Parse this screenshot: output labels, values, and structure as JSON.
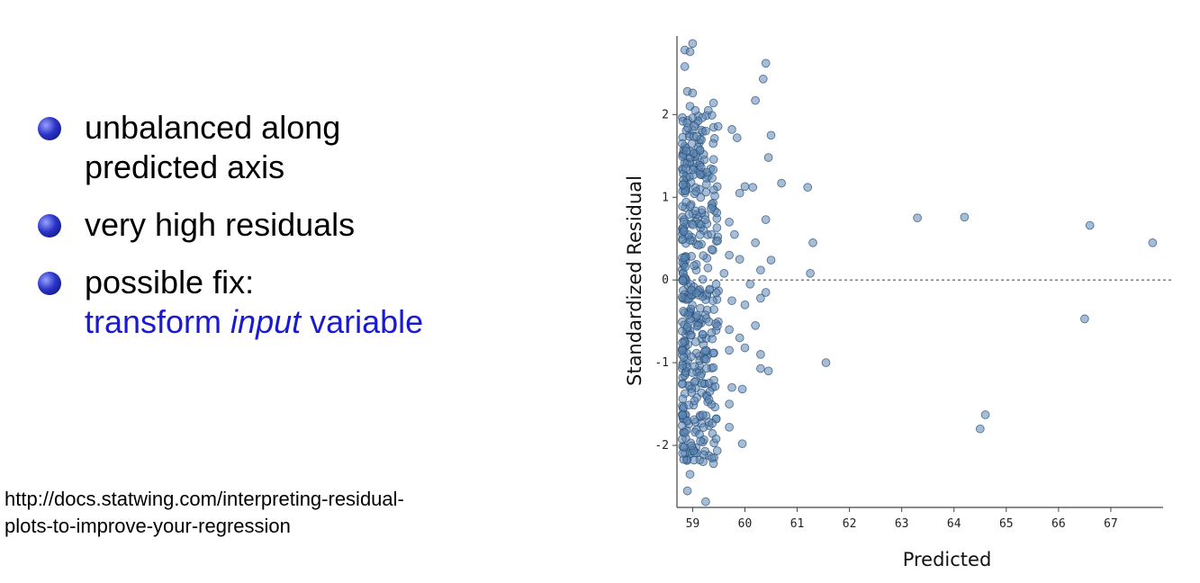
{
  "bullets": {
    "b1": {
      "line1": "unbalanced along",
      "line2": "predicted axis"
    },
    "b2": {
      "line1": "very high residuals"
    },
    "b3": {
      "line1": "possible fix:",
      "pre": "transform ",
      "em": "input",
      "post": " variable"
    }
  },
  "source": {
    "line1": "http://docs.statwing.com/interpreting-residual-",
    "line2": "plots-to-improve-your-regression"
  },
  "colors": {
    "bullet": "#2a34c8",
    "link_text": "#1a1ad6",
    "points": "#5b86b5"
  },
  "chart_data": {
    "type": "scatter",
    "xlabel": "Predicted",
    "ylabel": "Standardized Residual",
    "xlim": [
      58.7,
      68.0
    ],
    "ylim": [
      -2.75,
      2.95
    ],
    "xticks": [
      "59",
      "60",
      "61",
      "62",
      "63",
      "64",
      "65",
      "66",
      "67"
    ],
    "yticks": [
      "2",
      "1",
      "0",
      "-1",
      "-2"
    ],
    "reference_line": {
      "y": 0,
      "style": "dashed"
    },
    "series": [
      {
        "points": [
          [
            63.3,
            0.75
          ],
          [
            64.2,
            0.76
          ],
          [
            66.6,
            0.66
          ],
          [
            67.8,
            0.45
          ],
          [
            66.5,
            -0.47
          ],
          [
            64.6,
            -1.63
          ],
          [
            64.5,
            -1.8
          ],
          [
            61.55,
            -1.0
          ],
          [
            61.2,
            1.12
          ],
          [
            61.3,
            0.45
          ],
          [
            61.25,
            0.08
          ],
          [
            60.4,
            2.62
          ],
          [
            60.35,
            2.43
          ],
          [
            60.2,
            2.17
          ],
          [
            60.5,
            1.75
          ],
          [
            60.45,
            1.48
          ],
          [
            60.7,
            1.17
          ],
          [
            60.15,
            1.12
          ],
          [
            60.0,
            1.13
          ],
          [
            59.9,
            1.05
          ],
          [
            60.4,
            0.73
          ],
          [
            60.2,
            0.45
          ],
          [
            60.5,
            0.24
          ],
          [
            60.3,
            0.12
          ],
          [
            60.1,
            -0.05
          ],
          [
            60.4,
            -0.15
          ],
          [
            60.3,
            -0.22
          ],
          [
            60.0,
            -0.3
          ],
          [
            60.2,
            -0.55
          ],
          [
            59.9,
            -0.7
          ],
          [
            60.0,
            -0.82
          ],
          [
            60.3,
            -0.9
          ],
          [
            60.3,
            -1.07
          ],
          [
            60.45,
            -1.1
          ],
          [
            59.95,
            -1.32
          ],
          [
            59.95,
            -1.98
          ],
          [
            59.4,
            2.14
          ],
          [
            59.3,
            2.05
          ],
          [
            59.25,
            1.8
          ],
          [
            59.75,
            1.82
          ],
          [
            59.85,
            1.72
          ],
          [
            59.7,
            0.7
          ],
          [
            59.8,
            0.55
          ],
          [
            59.7,
            0.3
          ],
          [
            59.9,
            0.25
          ],
          [
            59.6,
            0.08
          ],
          [
            59.75,
            -0.25
          ],
          [
            59.7,
            -0.6
          ],
          [
            59.7,
            -0.85
          ],
          [
            59.75,
            -1.3
          ],
          [
            59.7,
            -1.5
          ],
          [
            59.7,
            -1.78
          ],
          [
            59.45,
            -1.92
          ],
          [
            59.4,
            -2.22
          ],
          [
            59.25,
            -2.68
          ],
          [
            58.9,
            -2.55
          ],
          [
            58.95,
            -2.35
          ],
          [
            58.85,
            2.78
          ],
          [
            58.95,
            2.76
          ],
          [
            59.0,
            2.86
          ],
          [
            58.85,
            2.58
          ],
          [
            58.9,
            2.28
          ],
          [
            59.0,
            2.26
          ],
          [
            58.95,
            2.1
          ],
          [
            59.05,
            2.05
          ]
        ],
        "dense_band": {
          "x_range": [
            58.8,
            59.5
          ],
          "y_range": [
            -2.2,
            2.0
          ],
          "count": 420,
          "note": "heavily overlapping points concentrated near Predicted 58.8-59.5"
        }
      }
    ]
  }
}
